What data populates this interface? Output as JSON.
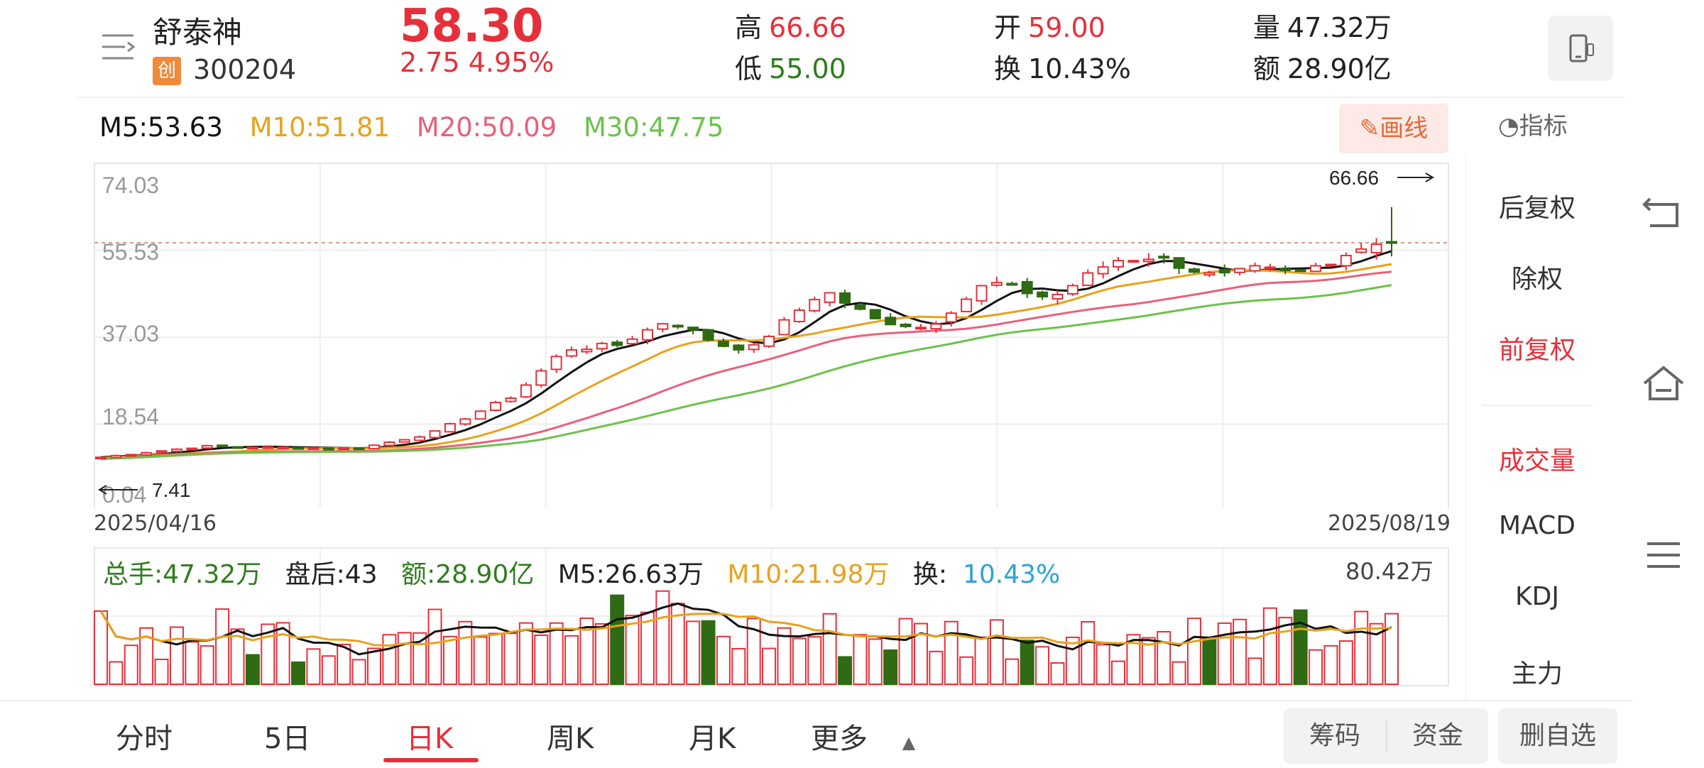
{
  "header": {
    "stock_name": "舒泰神",
    "board_badge": "创",
    "stock_code": "300204",
    "price": "58.30",
    "change": "2.75  4.95%",
    "high_label": "高",
    "high_value": "66.66",
    "low_label": "低",
    "low_value": "55.00",
    "open_label": "开",
    "open_value": "59.00",
    "turnover_label": "换",
    "turnover_value": "10.43%",
    "volume_label": "量",
    "volume_value": "47.32万",
    "amount_label": "额",
    "amount_value": "28.90亿"
  },
  "ma": {
    "m5": "M5:53.63",
    "m10": "M10:51.81",
    "m20": "M20:50.09",
    "m30": "M30:47.75"
  },
  "toolbar": {
    "draw_label": "画线",
    "indicator_label": "指标"
  },
  "kline": {
    "y_labels": [
      "74.03",
      "55.53",
      "37.03",
      "18.54",
      "0.04"
    ],
    "high_marker": "66.66",
    "low_marker": "7.41",
    "date_start": "2025/04/16",
    "date_end": "2025/08/19"
  },
  "volume": {
    "total": "总手:47.32万",
    "after_hours": "盘后:43",
    "amount": "额:28.90亿",
    "m5": "M5:26.63万",
    "m10": "M10:21.98万",
    "turnover_label": "换:",
    "turnover_value": "10.43%",
    "max_label": "80.42万"
  },
  "right_panel": {
    "items": [
      "后复权",
      "除权",
      "前复权",
      "成交量",
      "MACD",
      "KDJ",
      "主力"
    ]
  },
  "tabs": [
    "分时",
    "5日",
    "日K",
    "周K",
    "月K",
    "更多"
  ],
  "buttons": {
    "chips": "筹码",
    "funds": "资金",
    "remove_watch": "删自选"
  },
  "colors": {
    "up": "#e5303a",
    "down": "#2e6b13",
    "ma5": "#111111",
    "ma10": "#e8a21c",
    "ma20": "#e8607a",
    "ma30": "#6cc24a"
  }
}
